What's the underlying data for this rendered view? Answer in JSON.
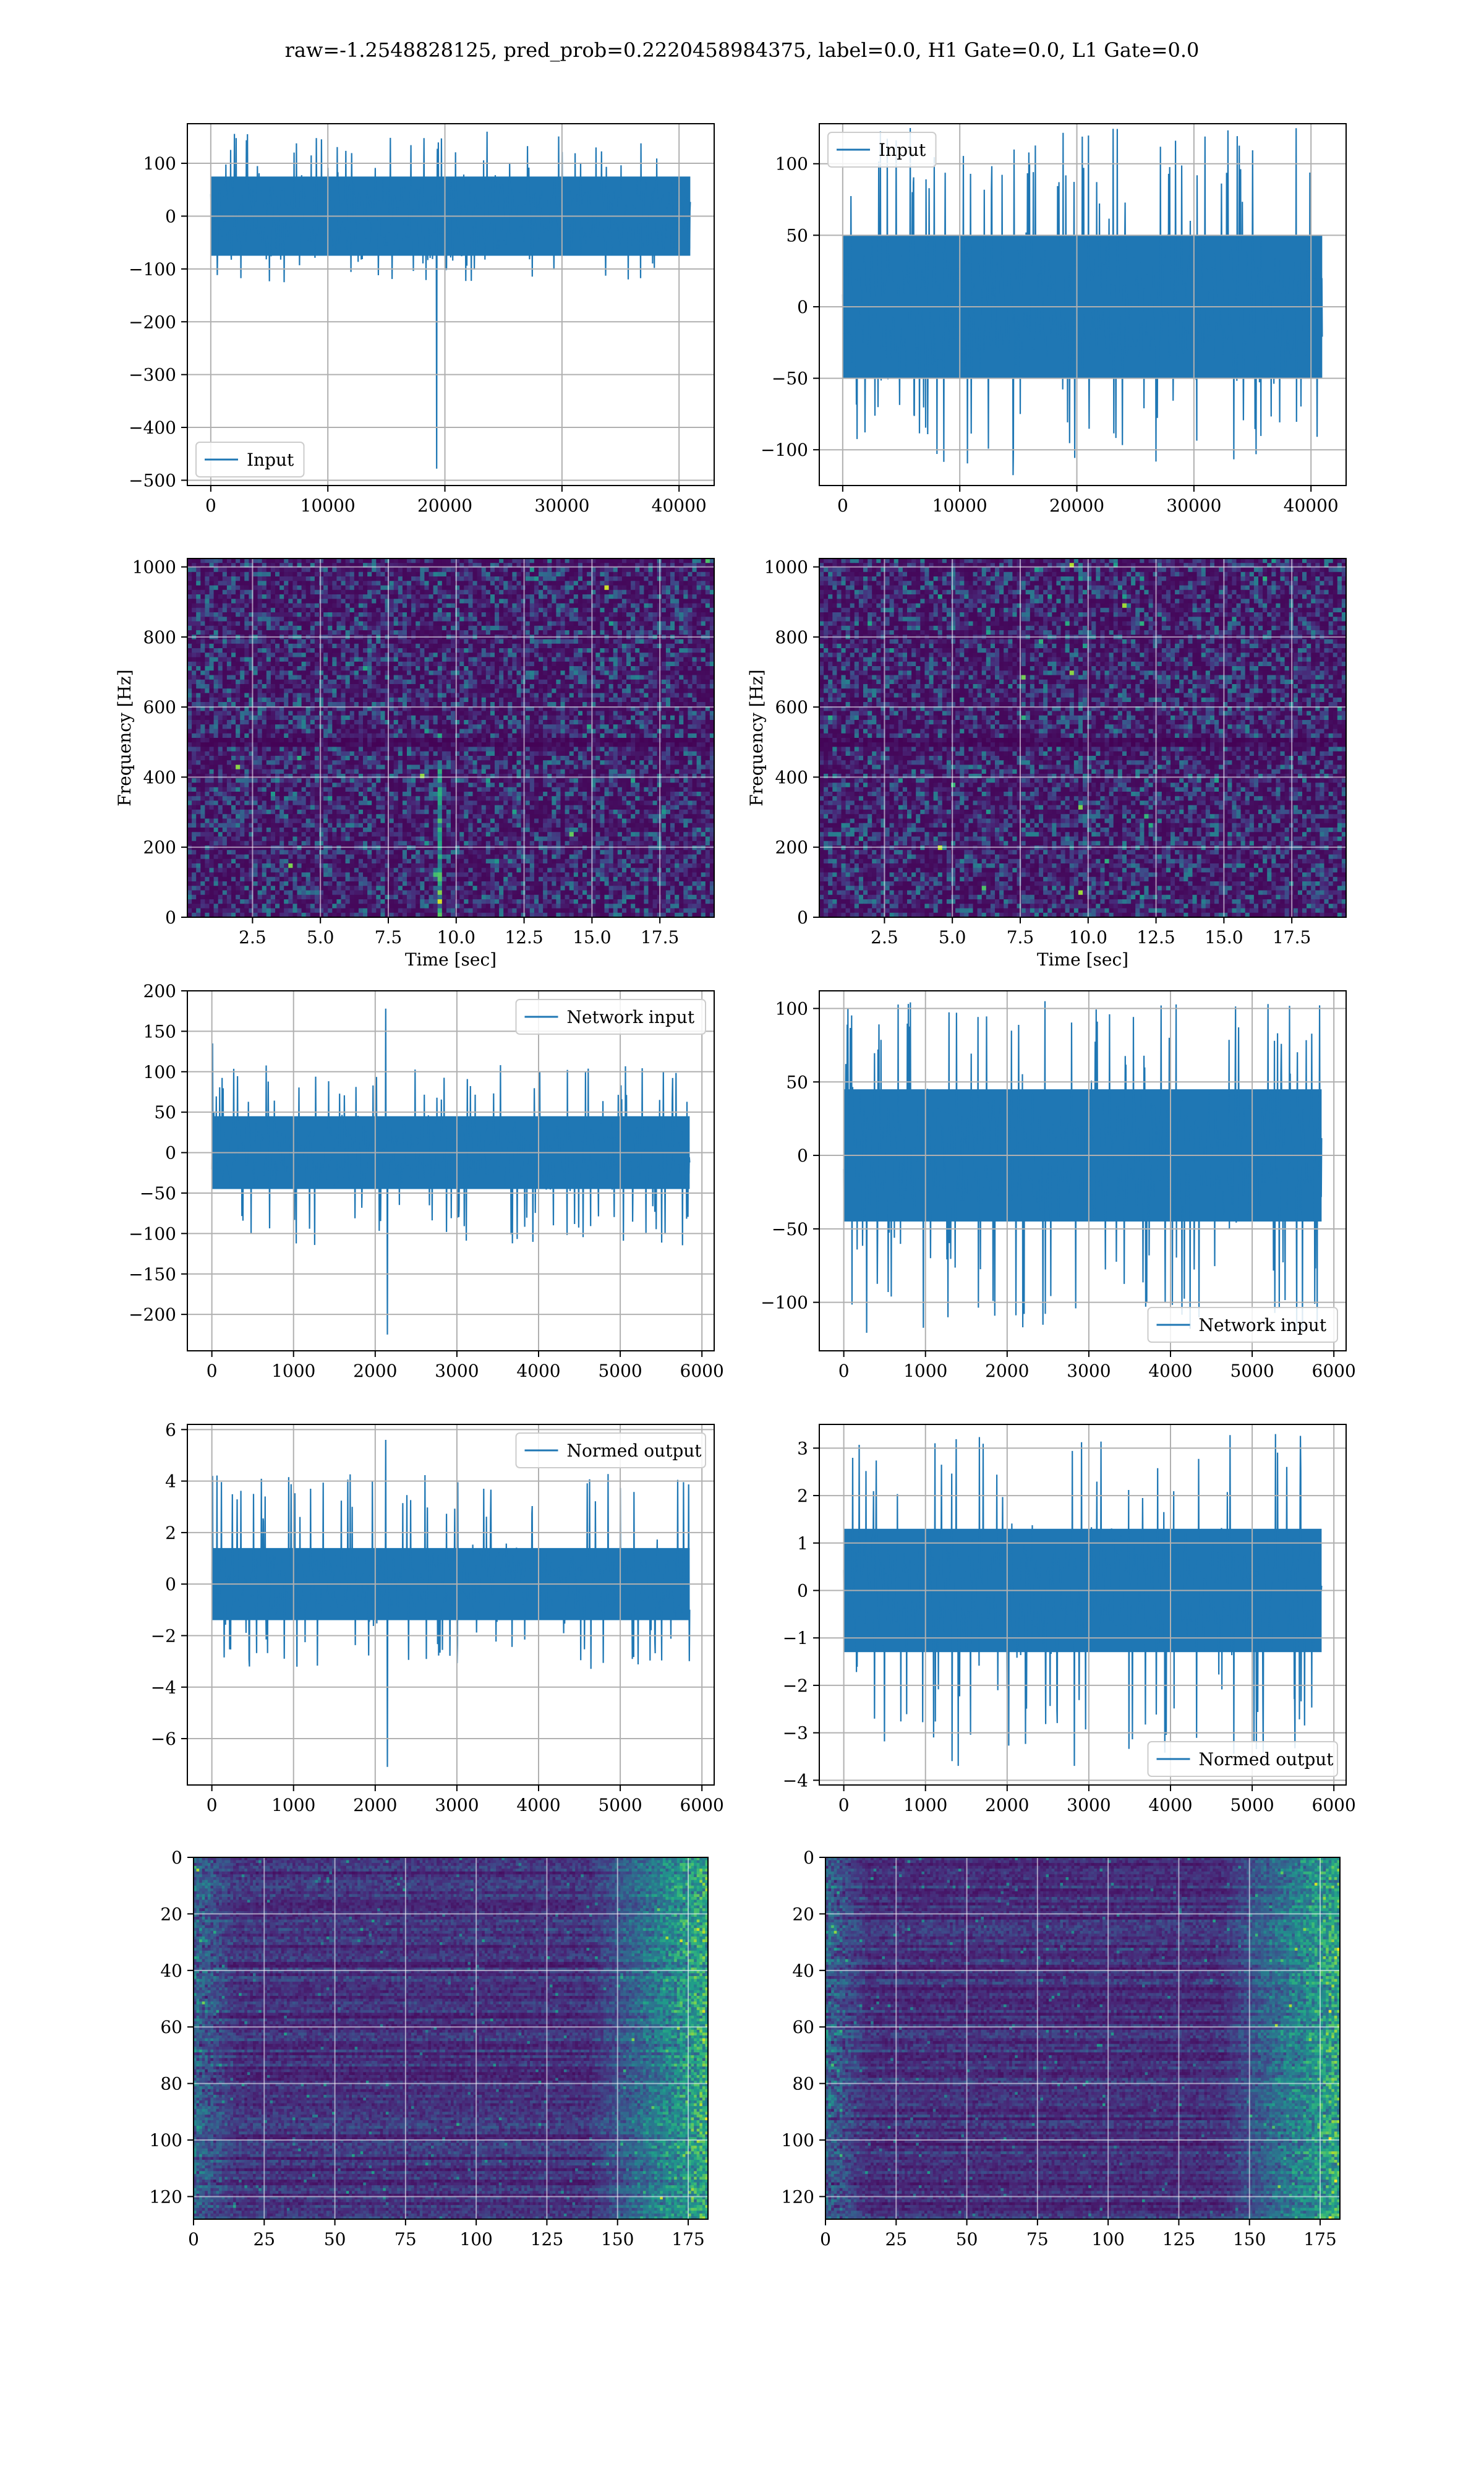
{
  "figure": {
    "title": "raw=-1.2548828125, pred_prob=0.2220458984375, label=0.0, H1 Gate=0.0, L1 Gate=0.0",
    "series_color": "#1f77b4"
  },
  "chart_data": [
    {
      "id": "h1-input",
      "type": "line",
      "legend": {
        "label": "Input",
        "loc": "lower-left"
      },
      "xlim": [
        -2000,
        43000
      ],
      "ylim": [
        -510,
        175
      ],
      "xticks": [
        0,
        10000,
        20000,
        30000,
        40000
      ],
      "yticks": [
        -500,
        -400,
        -300,
        -200,
        -100,
        0,
        100
      ],
      "ytick_labels": [
        "−500",
        "−400",
        "−300",
        "−200",
        "−100",
        "0",
        "100"
      ],
      "xlabel": "",
      "ylabel": "",
      "grid": true,
      "signal": {
        "x_start": 0,
        "x_end": 40960,
        "band": [
          -75,
          75
        ],
        "peak_max": 160,
        "peak_min": -125,
        "spikes": [
          {
            "x": 19300,
            "y": -478
          }
        ]
      }
    },
    {
      "id": "l1-input",
      "type": "line",
      "legend": {
        "label": "Input",
        "loc": "upper-left"
      },
      "xlim": [
        -2000,
        43000
      ],
      "ylim": [
        -125,
        128
      ],
      "xticks": [
        0,
        10000,
        20000,
        30000,
        40000
      ],
      "yticks": [
        -100,
        -50,
        0,
        50,
        100
      ],
      "ytick_labels": [
        "−100",
        "−50",
        "0",
        "50",
        "100"
      ],
      "xlabel": "",
      "ylabel": "",
      "grid": true,
      "signal": {
        "x_start": 0,
        "x_end": 40960,
        "band": [
          -50,
          50
        ],
        "peak_max": 125,
        "peak_min": -118,
        "spikes": []
      }
    },
    {
      "id": "h1-spectrogram",
      "type": "heatmap",
      "colormap": "viridis",
      "xlim": [
        0.1,
        19.5
      ],
      "ylim": [
        0,
        1024
      ],
      "xticks": [
        2.5,
        5.0,
        7.5,
        10.0,
        12.5,
        15.0,
        17.5
      ],
      "xtick_labels": [
        "2.5",
        "5.0",
        "7.5",
        "10.0",
        "12.5",
        "15.0",
        "17.5"
      ],
      "yticks": [
        0,
        200,
        400,
        600,
        800,
        1000
      ],
      "ytick_labels": [
        "0",
        "200",
        "400",
        "600",
        "800",
        "1000"
      ],
      "xlabel": "Time [sec]",
      "ylabel": "Frequency [Hz]",
      "grid": true,
      "features": {
        "dark_band_hz": 500,
        "bright_column_sec": 9.4
      }
    },
    {
      "id": "l1-spectrogram",
      "type": "heatmap",
      "colormap": "viridis",
      "xlim": [
        0.1,
        19.5
      ],
      "ylim": [
        0,
        1024
      ],
      "xticks": [
        2.5,
        5.0,
        7.5,
        10.0,
        12.5,
        15.0,
        17.5
      ],
      "xtick_labels": [
        "2.5",
        "5.0",
        "7.5",
        "10.0",
        "12.5",
        "15.0",
        "17.5"
      ],
      "yticks": [
        0,
        200,
        400,
        600,
        800,
        1000
      ],
      "ytick_labels": [
        "0",
        "200",
        "400",
        "600",
        "800",
        "1000"
      ],
      "xlabel": "Time [sec]",
      "ylabel": "Frequency [Hz]",
      "grid": true,
      "features": {
        "dark_band_hz": 500,
        "bright_column_sec": -1
      }
    },
    {
      "id": "h1-network-input",
      "type": "line",
      "legend": {
        "label": "Network input",
        "loc": "upper-right"
      },
      "xlim": [
        -300,
        6150
      ],
      "ylim": [
        -245,
        200
      ],
      "xticks": [
        0,
        1000,
        2000,
        3000,
        4000,
        5000,
        6000
      ],
      "yticks": [
        -200,
        -150,
        -100,
        -50,
        0,
        50,
        100,
        150,
        200
      ],
      "ytick_labels": [
        "−200",
        "−150",
        "−100",
        "−50",
        "0",
        "50",
        "100",
        "150",
        "200"
      ],
      "xlabel": "",
      "ylabel": "",
      "grid": true,
      "signal": {
        "x_start": 0,
        "x_end": 5850,
        "band": [
          -45,
          45
        ],
        "peak_max": 110,
        "peak_min": -115,
        "spikes": [
          {
            "x": 2130,
            "y": 178
          },
          {
            "x": 2150,
            "y": -225
          },
          {
            "x": 10,
            "y": 135
          }
        ]
      }
    },
    {
      "id": "l1-network-input",
      "type": "line",
      "legend": {
        "label": "Network input",
        "loc": "lower-right"
      },
      "xlim": [
        -300,
        6150
      ],
      "ylim": [
        -133,
        112
      ],
      "xticks": [
        0,
        1000,
        2000,
        3000,
        4000,
        5000,
        6000
      ],
      "yticks": [
        -100,
        -50,
        0,
        50,
        100
      ],
      "ytick_labels": [
        "−100",
        "−50",
        "0",
        "50",
        "100"
      ],
      "xlabel": "",
      "ylabel": "",
      "grid": true,
      "signal": {
        "x_start": 0,
        "x_end": 5850,
        "band": [
          -45,
          45
        ],
        "peak_max": 105,
        "peak_min": -122,
        "spikes": []
      }
    },
    {
      "id": "h1-normed-output",
      "type": "line",
      "legend": {
        "label": "Normed output",
        "loc": "upper-right"
      },
      "xlim": [
        -300,
        6150
      ],
      "ylim": [
        -7.8,
        6.2
      ],
      "xticks": [
        0,
        1000,
        2000,
        3000,
        4000,
        5000,
        6000
      ],
      "yticks": [
        -6,
        -4,
        -2,
        0,
        2,
        4,
        6
      ],
      "ytick_labels": [
        "−6",
        "−4",
        "−2",
        "0",
        "2",
        "4",
        "6"
      ],
      "xlabel": "",
      "ylabel": "",
      "grid": true,
      "signal": {
        "x_start": 0,
        "x_end": 5850,
        "band": [
          -1.4,
          1.4
        ],
        "peak_max": 4.4,
        "peak_min": -3.3,
        "spikes": [
          {
            "x": 2130,
            "y": 5.6
          },
          {
            "x": 2150,
            "y": -7.1
          },
          {
            "x": 10,
            "y": 4.2
          }
        ]
      }
    },
    {
      "id": "l1-normed-output",
      "type": "line",
      "legend": {
        "label": "Normed output",
        "loc": "lower-right"
      },
      "xlim": [
        -300,
        6150
      ],
      "ylim": [
        -4.1,
        3.5
      ],
      "xticks": [
        0,
        1000,
        2000,
        3000,
        4000,
        5000,
        6000
      ],
      "yticks": [
        -4,
        -3,
        -2,
        -1,
        0,
        1,
        2,
        3
      ],
      "ytick_labels": [
        "−4",
        "−3",
        "−2",
        "−1",
        "0",
        "1",
        "2",
        "3"
      ],
      "xlabel": "",
      "ylabel": "",
      "grid": true,
      "signal": {
        "x_start": 0,
        "x_end": 5850,
        "band": [
          -1.3,
          1.3
        ],
        "peak_max": 3.3,
        "peak_min": -3.7,
        "spikes": []
      }
    },
    {
      "id": "h1-feature-map",
      "type": "heatmap",
      "colormap": "viridis",
      "xlim": [
        0,
        182
      ],
      "ylim": [
        0,
        128
      ],
      "y_inverted": true,
      "xticks": [
        0,
        25,
        50,
        75,
        100,
        125,
        150,
        175
      ],
      "xtick_labels": [
        "0",
        "25",
        "50",
        "75",
        "100",
        "125",
        "150",
        "175"
      ],
      "yticks": [
        0,
        20,
        40,
        60,
        80,
        100,
        120
      ],
      "ytick_labels": [
        "0",
        "20",
        "40",
        "60",
        "80",
        "100",
        "120"
      ],
      "xlabel": "",
      "ylabel": "",
      "grid": true
    },
    {
      "id": "l1-feature-map",
      "type": "heatmap",
      "colormap": "viridis",
      "xlim": [
        0,
        182
      ],
      "ylim": [
        0,
        128
      ],
      "y_inverted": true,
      "xticks": [
        0,
        25,
        50,
        75,
        100,
        125,
        150,
        175
      ],
      "xtick_labels": [
        "0",
        "25",
        "50",
        "75",
        "100",
        "125",
        "150",
        "175"
      ],
      "yticks": [
        0,
        20,
        40,
        60,
        80,
        100,
        120
      ],
      "ytick_labels": [
        "0",
        "20",
        "40",
        "60",
        "80",
        "100",
        "120"
      ],
      "xlabel": "",
      "ylabel": "",
      "grid": true
    }
  ]
}
